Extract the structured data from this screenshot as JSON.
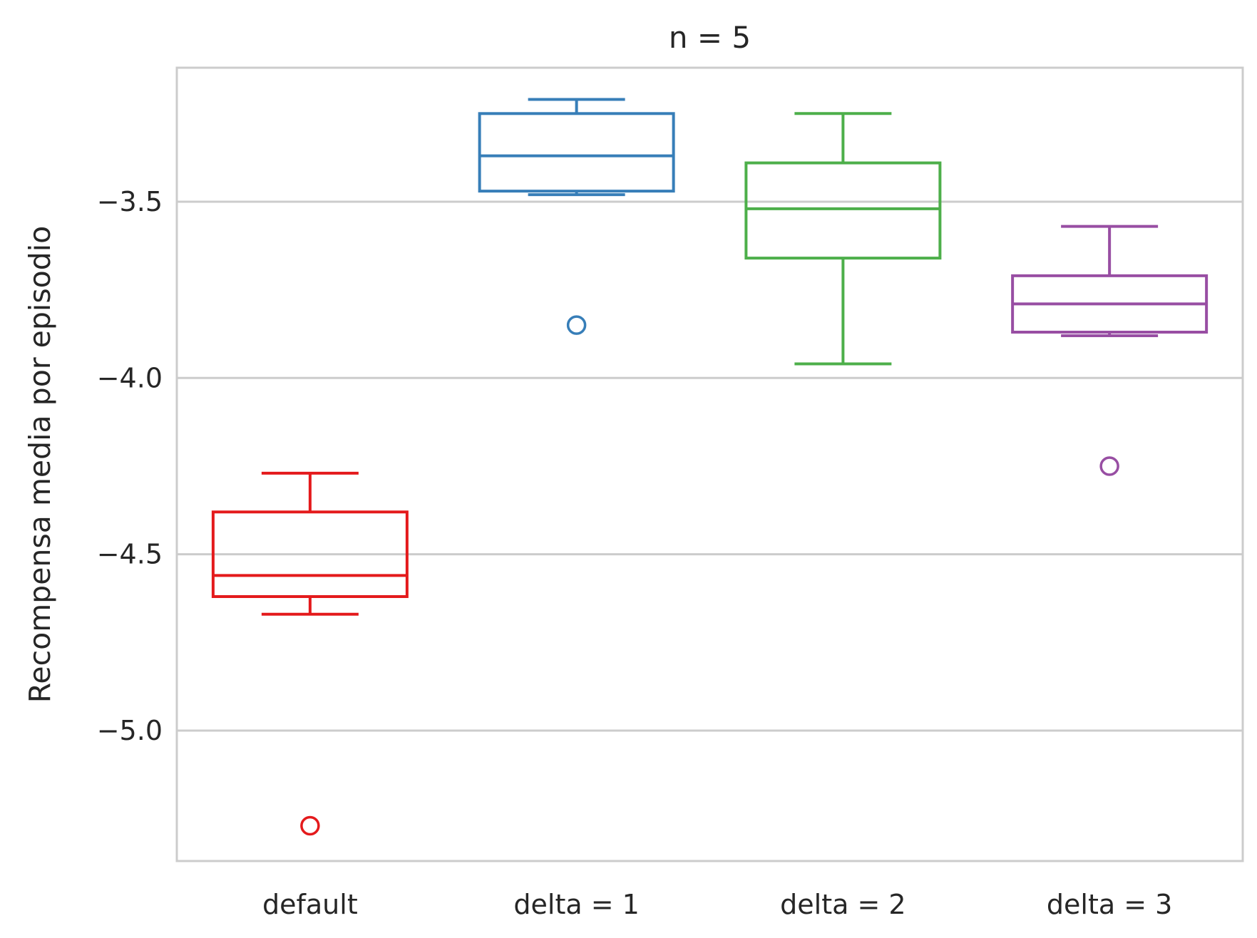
{
  "chart_data": {
    "type": "box",
    "title": "n = 5",
    "xlabel": "",
    "ylabel": "Recompensa media por episodio",
    "ylim": [
      -5.37,
      -3.12
    ],
    "yticks": [
      -3.5,
      -4.0,
      -4.5,
      -5.0
    ],
    "ytick_labels": [
      "−3.5",
      "−4.0",
      "−4.5",
      "−5.0"
    ],
    "grid": "horizontal",
    "categories": [
      "default",
      "delta = 1",
      "delta = 2",
      "delta = 3"
    ],
    "series": [
      {
        "category": "default",
        "color": "#e41a1c",
        "whisker_high": -4.27,
        "q3": -4.38,
        "median": -4.56,
        "q1": -4.62,
        "whisker_low": -4.67,
        "outliers": [
          -5.27
        ]
      },
      {
        "category": "delta = 1",
        "color": "#377eb8",
        "whisker_high": -3.21,
        "q3": -3.25,
        "median": -3.37,
        "q1": -3.47,
        "whisker_low": -3.48,
        "outliers": [
          -3.85
        ]
      },
      {
        "category": "delta = 2",
        "color": "#4daf4a",
        "whisker_high": -3.25,
        "q3": -3.39,
        "median": -3.52,
        "q1": -3.66,
        "whisker_low": -3.96,
        "outliers": []
      },
      {
        "category": "delta = 3",
        "color": "#984ea3",
        "whisker_high": -3.57,
        "q3": -3.71,
        "median": -3.79,
        "q1": -3.87,
        "whisker_low": -3.88,
        "outliers": [
          -4.25
        ]
      }
    ]
  }
}
